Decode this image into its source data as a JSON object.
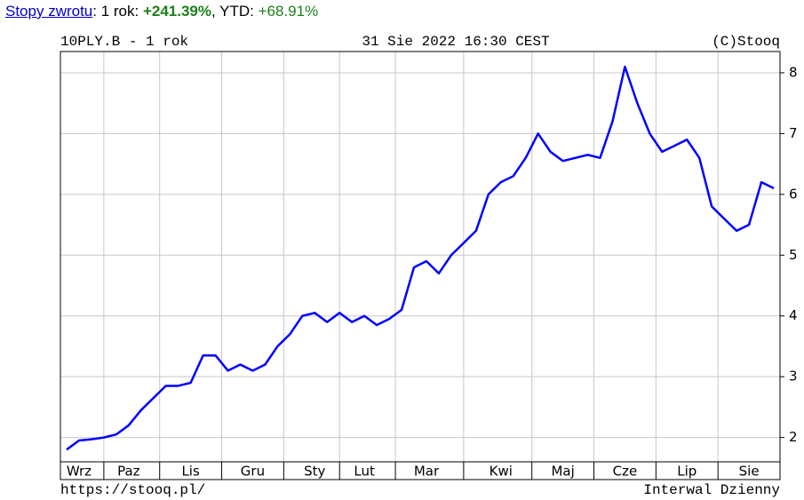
{
  "header": {
    "parts": [
      "Stopy zwrotu",
      ": 1 rok: ",
      "+241.39%",
      ", YTD: ",
      "+68.91%"
    ]
  },
  "chart_data": {
    "type": "line",
    "title": "10PLY.B - 1 rok",
    "date": "31 Sie 2022 16:30 CEST",
    "credit": "(C)Stooq",
    "source": "https://stooq.pl/",
    "interval": "Interwal Dzienny",
    "color": "#0000ff",
    "grid": true,
    "categories": [
      null,
      "Wrz",
      null,
      null,
      null,
      "Paz",
      null,
      null,
      null,
      null,
      "Lis",
      null,
      null,
      null,
      null,
      "Gru",
      null,
      null,
      null,
      null,
      "Sty",
      null,
      null,
      null,
      "Lut",
      null,
      null,
      null,
      null,
      "Mar",
      null,
      null,
      null,
      null,
      null,
      "Kwi",
      null,
      null,
      null,
      null,
      "Maj",
      null,
      null,
      null,
      null,
      "Cze",
      null,
      null,
      null,
      null,
      "Lip",
      null,
      null,
      null,
      null,
      "Sie",
      null,
      null
    ],
    "values": [
      1.8,
      1.95,
      1.97,
      2.0,
      2.05,
      2.2,
      2.45,
      2.65,
      2.85,
      2.85,
      2.9,
      3.35,
      3.35,
      3.1,
      3.2,
      3.1,
      3.2,
      3.5,
      3.7,
      4.0,
      4.05,
      3.9,
      4.05,
      3.9,
      4.0,
      3.85,
      3.95,
      4.1,
      4.8,
      4.9,
      4.7,
      5.0,
      5.2,
      5.4,
      6.0,
      6.2,
      6.3,
      6.6,
      7.0,
      6.7,
      6.55,
      6.6,
      6.65,
      6.6,
      7.2,
      8.1,
      7.5,
      7.0,
      6.7,
      6.8,
      6.9,
      6.6,
      5.8,
      5.6,
      5.4,
      5.5,
      6.2,
      6.1
    ],
    "ylim": [
      1.6,
      8.35
    ],
    "yticks": [
      2,
      3,
      4,
      5,
      6,
      7,
      8
    ]
  }
}
